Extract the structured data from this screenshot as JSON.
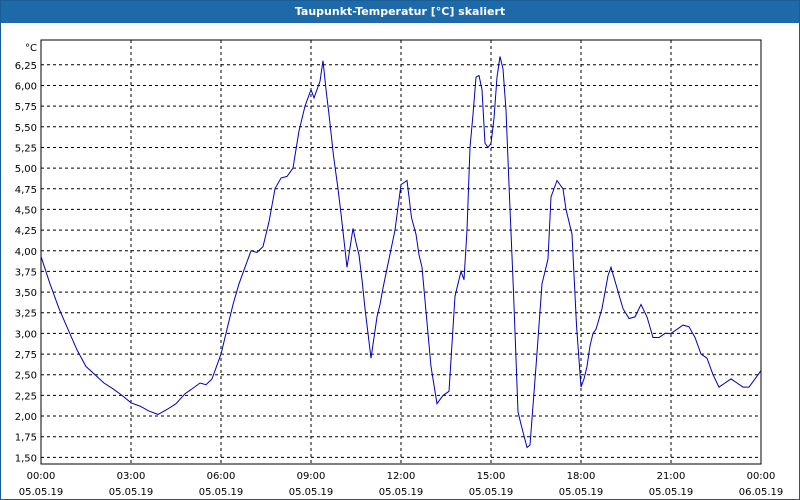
{
  "window": {
    "title": "Taupunkt-Temperatur [°C] skaliert"
  },
  "colors": {
    "title_bar": "#1e6aa8",
    "line": "#0000bb",
    "grid": "#000000",
    "background": "#ffffff"
  },
  "chart_data": {
    "type": "line",
    "title": "Taupunkt-Temperatur [°C] skaliert",
    "ylabel": "°C",
    "xlabel": "",
    "ylim": [
      1.42,
      6.55
    ],
    "xlim": [
      0,
      24
    ],
    "grid": true,
    "y_ticks": [
      "1,50",
      "1,75",
      "2,00",
      "2,25",
      "2,50",
      "2,75",
      "3,00",
      "3,25",
      "3,50",
      "3,75",
      "4,00",
      "4,25",
      "4,50",
      "4,75",
      "5,00",
      "5,25",
      "5,50",
      "5,75",
      "6,00",
      "6,25"
    ],
    "x_ticks": [
      {
        "time": "00:00",
        "date": "05.05.19"
      },
      {
        "time": "03:00",
        "date": "05.05.19"
      },
      {
        "time": "06:00",
        "date": "05.05.19"
      },
      {
        "time": "09:00",
        "date": "05.05.19"
      },
      {
        "time": "12:00",
        "date": "05.05.19"
      },
      {
        "time": "15:00",
        "date": "05.05.19"
      },
      {
        "time": "18:00",
        "date": "05.05.19"
      },
      {
        "time": "21:00",
        "date": "05.05.19"
      },
      {
        "time": "00:00",
        "date": "06.05.19"
      }
    ],
    "series": [
      {
        "x": [
          0,
          0.3,
          0.6,
          0.9,
          1.2,
          1.5,
          1.8,
          2.1,
          2.4,
          2.7,
          3.0,
          3.3,
          3.6,
          3.9,
          4.0,
          4.2,
          4.5,
          4.8,
          5.0,
          5.3,
          5.5,
          5.7,
          6.0,
          6.2,
          6.4,
          6.6,
          6.8,
          7.0,
          7.2,
          7.4,
          7.6,
          7.8,
          8.0,
          8.2,
          8.4,
          8.6,
          8.8,
          9.0,
          9.1,
          9.2,
          9.3,
          9.4,
          9.5,
          9.6,
          9.75,
          9.9,
          10.0,
          10.2,
          10.4,
          10.5,
          10.6,
          10.7,
          10.8,
          11.0,
          11.2,
          11.3,
          11.4,
          11.6,
          11.8,
          12.0,
          12.2,
          12.35,
          12.5,
          12.6,
          12.7,
          12.9,
          13.0,
          13.2,
          13.4,
          13.6,
          13.8,
          14.0,
          14.1,
          14.2,
          14.3,
          14.4,
          14.5,
          14.6,
          14.7,
          14.8,
          14.9,
          15.0,
          15.1,
          15.2,
          15.3,
          15.4,
          15.5,
          15.6,
          15.75,
          15.9,
          16.0,
          16.2,
          16.3,
          16.5,
          16.7,
          16.9,
          17.0,
          17.2,
          17.4,
          17.5,
          17.7,
          17.85,
          18.0,
          18.1,
          18.2,
          18.3,
          18.4,
          18.5,
          18.7,
          18.9,
          19.0,
          19.2,
          19.4,
          19.6,
          19.8,
          20.0,
          20.2,
          20.4,
          20.6,
          20.8,
          21.0,
          21.2,
          21.4,
          21.6,
          21.8,
          22.0,
          22.2,
          22.4,
          22.6,
          22.8,
          23.0,
          23.2,
          23.4,
          23.6,
          23.8,
          24.0
        ],
        "values": [
          3.93,
          3.6,
          3.3,
          3.05,
          2.8,
          2.6,
          2.5,
          2.4,
          2.33,
          2.25,
          2.16,
          2.12,
          2.06,
          2.02,
          2.04,
          2.08,
          2.15,
          2.27,
          2.32,
          2.4,
          2.38,
          2.45,
          2.75,
          3.05,
          3.35,
          3.6,
          3.8,
          4.0,
          3.98,
          4.05,
          4.35,
          4.75,
          4.88,
          4.9,
          5.0,
          5.45,
          5.75,
          5.95,
          5.85,
          5.95,
          6.05,
          6.3,
          5.95,
          5.65,
          5.15,
          4.75,
          4.45,
          3.8,
          4.27,
          4.1,
          3.95,
          3.65,
          3.3,
          2.7,
          3.2,
          3.35,
          3.55,
          3.9,
          4.25,
          4.8,
          4.85,
          4.4,
          4.2,
          3.95,
          3.8,
          3.0,
          2.6,
          2.15,
          2.25,
          2.3,
          3.45,
          3.75,
          3.65,
          4.25,
          5.25,
          5.65,
          6.1,
          6.12,
          5.95,
          5.3,
          5.25,
          5.3,
          5.6,
          6.1,
          6.35,
          6.2,
          5.7,
          4.8,
          3.5,
          2.05,
          1.9,
          1.62,
          1.65,
          2.6,
          3.6,
          3.9,
          4.65,
          4.85,
          4.75,
          4.5,
          4.2,
          3.1,
          2.35,
          2.45,
          2.6,
          2.85,
          3.0,
          3.05,
          3.3,
          3.7,
          3.8,
          3.55,
          3.3,
          3.18,
          3.2,
          3.35,
          3.2,
          2.95,
          2.95,
          3.0,
          3.0,
          3.05,
          3.1,
          3.08,
          2.95,
          2.75,
          2.7,
          2.5,
          2.35,
          2.4,
          2.45,
          2.4,
          2.35,
          2.35,
          2.45,
          2.55
        ]
      }
    ]
  }
}
